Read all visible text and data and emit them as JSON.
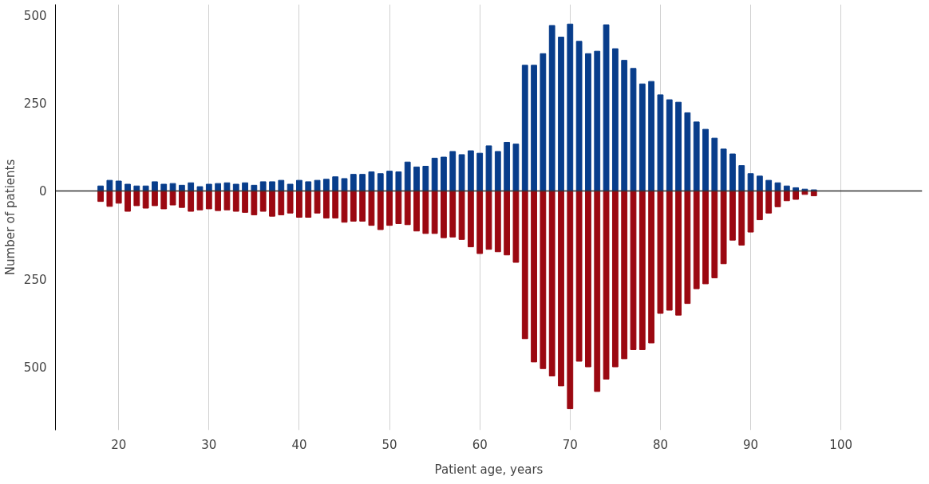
{
  "chart_data": {
    "type": "bar",
    "xlabel": "Patient age, years",
    "ylabel": "Number of patients",
    "x": [
      18,
      19,
      20,
      21,
      22,
      23,
      24,
      25,
      26,
      27,
      28,
      29,
      30,
      31,
      32,
      33,
      34,
      35,
      36,
      37,
      38,
      39,
      40,
      41,
      42,
      43,
      44,
      45,
      46,
      47,
      48,
      49,
      50,
      51,
      52,
      53,
      54,
      55,
      56,
      57,
      58,
      59,
      60,
      61,
      62,
      63,
      64,
      65,
      66,
      67,
      68,
      69,
      70,
      71,
      72,
      73,
      74,
      75,
      76,
      77,
      78,
      79,
      80,
      81,
      82,
      83,
      84,
      85,
      86,
      87,
      88,
      89,
      90,
      91,
      92,
      93,
      94,
      95,
      96,
      97
    ],
    "series": [
      {
        "color": "#083d8b",
        "values": [
          14,
          30,
          28,
          19,
          14,
          14,
          26,
          19,
          21,
          16,
          23,
          12,
          19,
          21,
          23,
          19,
          23,
          16,
          26,
          26,
          30,
          19,
          30,
          26,
          30,
          33,
          40,
          35,
          47,
          47,
          54,
          49,
          56,
          54,
          82,
          68,
          70,
          93,
          96,
          112,
          103,
          114,
          107,
          128,
          112,
          138,
          133,
          357,
          357,
          390,
          470,
          437,
          474,
          425,
          390,
          397,
          472,
          404,
          371,
          348,
          304,
          311,
          273,
          259,
          252,
          222,
          196,
          175,
          150,
          119,
          105,
          72,
          49,
          42,
          30,
          23,
          14,
          9,
          5,
          3
        ]
      },
      {
        "color": "#9b0811",
        "values": [
          -30,
          -44,
          -35,
          -58,
          -42,
          -49,
          -42,
          -51,
          -40,
          -47,
          -58,
          -54,
          -51,
          -56,
          -54,
          -58,
          -61,
          -68,
          -58,
          -72,
          -68,
          -63,
          -75,
          -75,
          -63,
          -77,
          -77,
          -89,
          -86,
          -86,
          -98,
          -110,
          -98,
          -93,
          -96,
          -114,
          -121,
          -121,
          -133,
          -131,
          -138,
          -159,
          -178,
          -166,
          -173,
          -182,
          -203,
          -420,
          -486,
          -505,
          -526,
          -554,
          -619,
          -484,
          -500,
          -570,
          -535,
          -500,
          -477,
          -451,
          -451,
          -432,
          -348,
          -339,
          -353,
          -320,
          -278,
          -264,
          -247,
          -207,
          -140,
          -154,
          -117,
          -82,
          -63,
          -45,
          -28,
          -24,
          -10,
          -14
        ]
      }
    ],
    "xlim": [
      13,
      109
    ],
    "xticks": [
      20,
      30,
      40,
      50,
      60,
      70,
      80,
      90,
      100
    ],
    "ylim": [
      -680,
      530
    ],
    "yticks": [
      {
        "value": -500,
        "label": "500"
      },
      {
        "value": -250,
        "label": "250"
      },
      0,
      250,
      500
    ],
    "ref_lines": [
      {
        "axis": "y",
        "value": 0,
        "color": "#333333"
      }
    ],
    "grid": "x",
    "stacked": true
  }
}
